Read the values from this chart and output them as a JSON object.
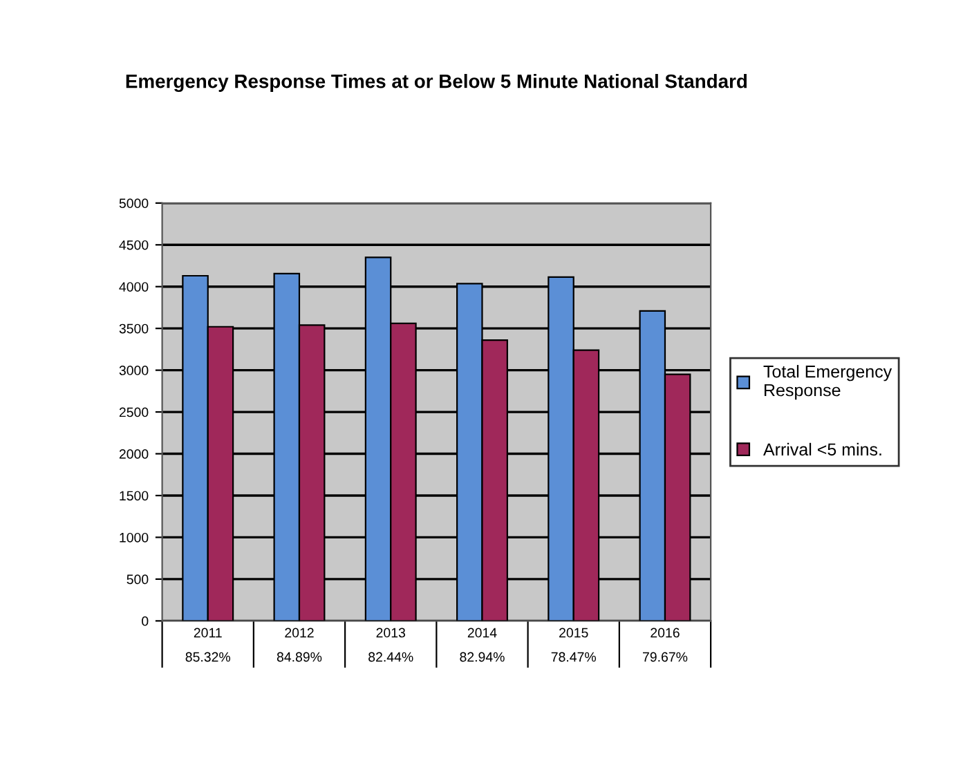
{
  "chart_data": {
    "type": "bar",
    "title": "Emergency Response Times at or Below 5 Minute National Standard",
    "categories": [
      "2011\n85.32%",
      "2012\n84.89%",
      "2013\n82.44%",
      "2014\n82.94%",
      "2015\n78.47%",
      "2016\n79.67%"
    ],
    "series": [
      {
        "name": "Total Emergency\nResponse",
        "color": "#5b8fd6",
        "values": [
          4130,
          4155,
          4350,
          4035,
          4115,
          3710
        ]
      },
      {
        "name": "Arrival <5 mins.",
        "color": "#a0285a",
        "values": [
          3520,
          3540,
          3560,
          3360,
          3240,
          2950
        ]
      }
    ],
    "ylim": [
      0,
      5000
    ],
    "yticks": [
      0,
      500,
      1000,
      1500,
      2000,
      2500,
      3000,
      3500,
      4000,
      4500,
      5000
    ],
    "grid": "y",
    "legend": "right"
  }
}
